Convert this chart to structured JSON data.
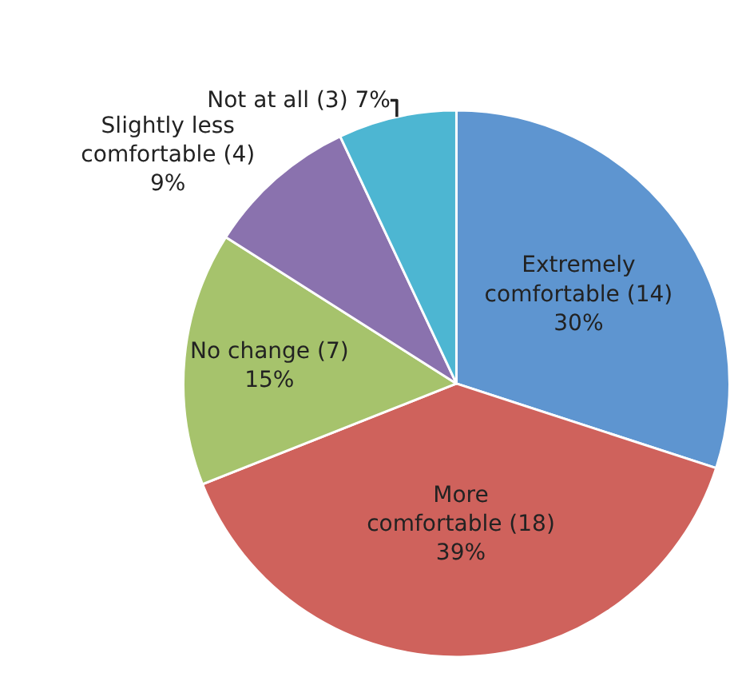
{
  "chart_data": {
    "type": "pie",
    "categories": [
      "Extremely\ncomfortable (14)",
      "More\ncomfortable (18)",
      "No change (7)",
      "Slightly less\ncomfortable (4)",
      "Not at all (3)"
    ],
    "values": [
      30,
      39,
      15,
      9,
      7
    ],
    "value_labels": [
      "30%",
      "39%",
      "15%",
      "9%",
      "7%"
    ],
    "colors": [
      "#5e95d0",
      "#cf625c",
      "#a6c36c",
      "#8a72ae",
      "#4db6d2"
    ],
    "legend": false
  }
}
